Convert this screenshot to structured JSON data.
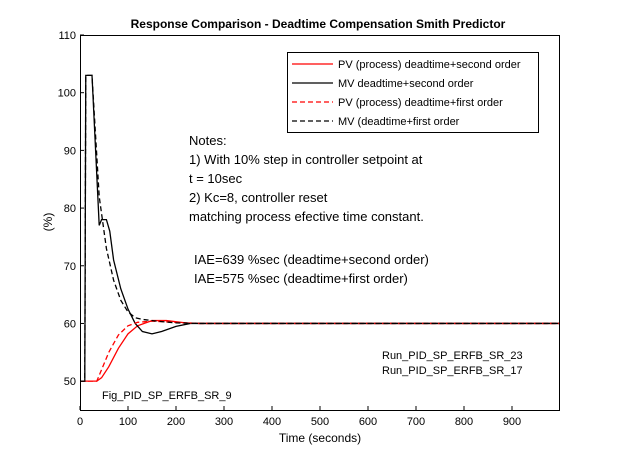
{
  "chart_data": {
    "type": "line",
    "title": "Response Comparison - Deadtime Compensation Smith Predictor",
    "xlabel": "Time (seconds)",
    "ylabel": "(%)",
    "xlim": [
      0,
      1000
    ],
    "ylim": [
      45,
      110
    ],
    "xticks": [
      0,
      100,
      200,
      300,
      400,
      500,
      600,
      700,
      800,
      900
    ],
    "yticks": [
      50,
      60,
      70,
      80,
      90,
      100,
      110
    ],
    "grid": false,
    "legend_position": "top-right",
    "series": [
      {
        "name": "PV (process) deadtime+second order",
        "color": "#ff0000",
        "dash": "solid",
        "x": [
          0,
          35,
          45,
          60,
          80,
          100,
          120,
          150,
          180,
          220,
          250,
          1000
        ],
        "y": [
          50,
          50,
          50.6,
          52.5,
          55.7,
          58.2,
          59.6,
          60.5,
          60.5,
          60.1,
          60,
          60
        ]
      },
      {
        "name": "MV deadtime+second order",
        "color": "#000000",
        "dash": "solid",
        "x": [
          0,
          10,
          12,
          25,
          40,
          45,
          55,
          62,
          70,
          85,
          100,
          115,
          130,
          150,
          170,
          200,
          230,
          260,
          1000
        ],
        "y": [
          50,
          50,
          103,
          103,
          77,
          78,
          78,
          76,
          71,
          66,
          62.5,
          60,
          58.6,
          58.2,
          58.6,
          59.5,
          60,
          60,
          60
        ]
      },
      {
        "name": "PV (process) deadtime+first order",
        "color": "#ff0000",
        "dash": "dashed",
        "x": [
          0,
          35,
          45,
          60,
          80,
          100,
          120,
          150,
          200,
          250,
          1000
        ],
        "y": [
          50,
          50,
          52,
          55,
          58,
          59.6,
          60.2,
          60.4,
          60.2,
          60,
          60
        ]
      },
      {
        "name": "MV (deadtime+first order",
        "color": "#000000",
        "dash": "dashed",
        "x": [
          0,
          10,
          12,
          25,
          40,
          55,
          70,
          85,
          100,
          115,
          130,
          160,
          200,
          250,
          1000
        ],
        "y": [
          50,
          50,
          103,
          103,
          82,
          73,
          67.5,
          64,
          62,
          61,
          60.7,
          60.4,
          60.1,
          60,
          60
        ]
      }
    ],
    "annotations": {
      "notes": [
        "Notes:",
        "1) With 10% step in controller setpoint at",
        "t = 10sec",
        "2) Kc=8, controller reset",
        "matching process efective time constant."
      ],
      "iae": [
        "IAE=639 %sec (deadtime+second order)",
        "IAE=575 %sec (deadtime+first order)"
      ],
      "runs": [
        "Run_PID_SP_ERFB_SR_23",
        "Run_PID_SP_ERFB_SR_17"
      ],
      "fig": "Fig_PID_SP_ERFB_SR_9"
    }
  }
}
